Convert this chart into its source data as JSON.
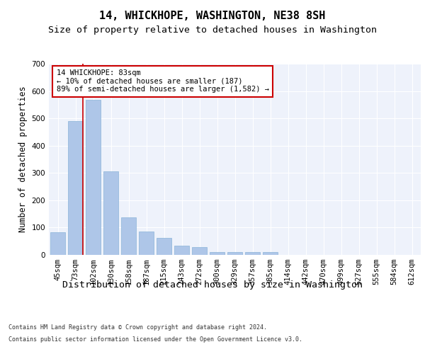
{
  "title": "14, WHICKHOPE, WASHINGTON, NE38 8SH",
  "subtitle": "Size of property relative to detached houses in Washington",
  "xlabel": "Distribution of detached houses by size in Washington",
  "ylabel": "Number of detached properties",
  "footer_line1": "Contains HM Land Registry data © Crown copyright and database right 2024.",
  "footer_line2": "Contains public sector information licensed under the Open Government Licence v3.0.",
  "categories": [
    "45sqm",
    "73sqm",
    "102sqm",
    "130sqm",
    "158sqm",
    "187sqm",
    "215sqm",
    "243sqm",
    "272sqm",
    "300sqm",
    "329sqm",
    "357sqm",
    "385sqm",
    "414sqm",
    "442sqm",
    "470sqm",
    "499sqm",
    "527sqm",
    "555sqm",
    "584sqm",
    "612sqm"
  ],
  "values": [
    82,
    490,
    568,
    305,
    137,
    85,
    63,
    33,
    28,
    10,
    10,
    10,
    10,
    0,
    0,
    0,
    0,
    0,
    0,
    0,
    0
  ],
  "bar_color": "#aec6e8",
  "bar_edge_color": "#8ab4d8",
  "highlight_bar_index": 1,
  "highlight_color": "#cc0000",
  "annotation_text": "14 WHICKHOPE: 83sqm\n← 10% of detached houses are smaller (187)\n89% of semi-detached houses are larger (1,582) →",
  "annotation_box_color": "#ffffff",
  "annotation_box_edge": "#cc0000",
  "ylim": [
    0,
    700
  ],
  "yticks": [
    0,
    100,
    200,
    300,
    400,
    500,
    600,
    700
  ],
  "plot_background": "#eef2fb",
  "title_fontsize": 11,
  "subtitle_fontsize": 9.5,
  "xlabel_fontsize": 9.5,
  "ylabel_fontsize": 8.5,
  "tick_fontsize": 7.5,
  "footer_fontsize": 6.0
}
